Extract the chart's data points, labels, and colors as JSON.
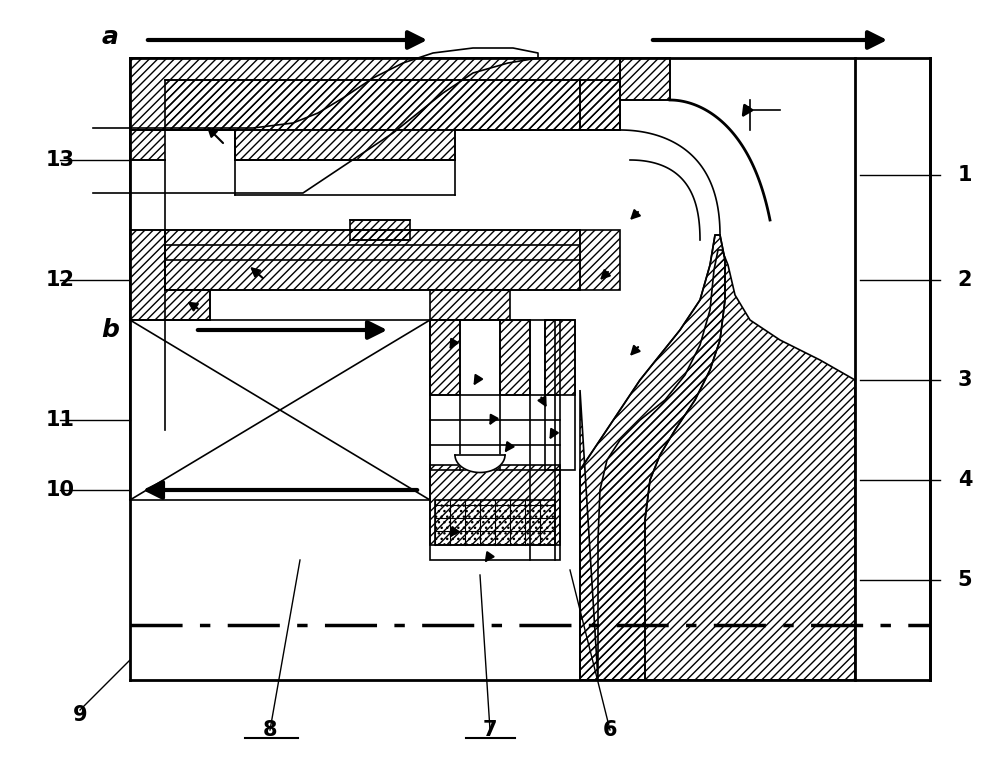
{
  "bg_color": "#ffffff",
  "lw": 1.2,
  "lw2": 2.0,
  "lw3": 3.0,
  "fig_width": 10.0,
  "fig_height": 7.73
}
